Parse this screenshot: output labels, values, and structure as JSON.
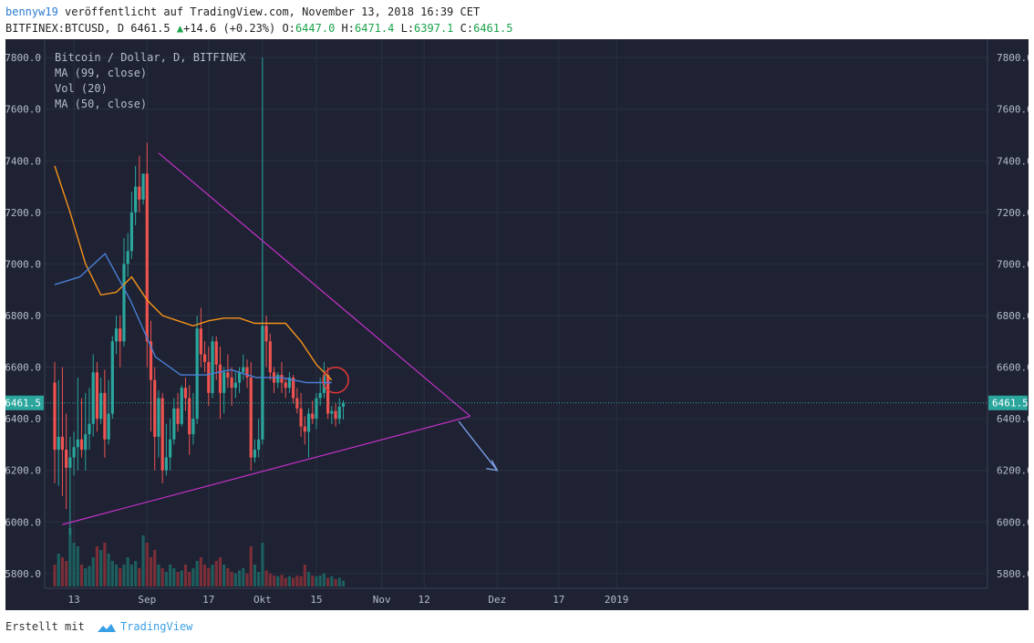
{
  "header": {
    "user": "bennyw19",
    "published": "veröffentlicht auf TradingView.com, November 13, 2018 16:39 CET",
    "symbol": "BITFINEX:BTCUSD, D",
    "last": "6461.5",
    "change": "+14.6 (+0.23%)",
    "o_label": "O:",
    "o": "6447.0",
    "h_label": "H:",
    "h": "6471.4",
    "l_label": "L:",
    "l": "6397.1",
    "c_label": "C:",
    "c": "6461.5"
  },
  "legend": {
    "title": "Bitcoin / Dollar, D, BITFINEX",
    "ma99": "MA (99, close)",
    "vol": "Vol (20)",
    "ma50": "MA (50, close)"
  },
  "footer": {
    "created": "Erstellt mit",
    "brand": "TradingView"
  },
  "colors": {
    "background": "#1e2233",
    "up": "#2aa69d",
    "down": "#ef5350",
    "ma50": "#f7931a",
    "ma99": "#4a7fd6",
    "trendline": "#c531c8",
    "arrow": "#7b9ee6",
    "circle": "#e53935",
    "grid": "#2b3142"
  },
  "chart_data": {
    "type": "candlestick",
    "title": "Bitcoin / Dollar, D, BITFINEX",
    "ylim": [
      5750,
      7850
    ],
    "y_ticks": [
      "5800.0",
      "6000.0",
      "6200.0",
      "6400.0",
      "6600.0",
      "6800.0",
      "7000.0",
      "7200.0",
      "7400.0",
      "7600.0",
      "7800.0"
    ],
    "x_ticks": [
      "13",
      "Sep",
      "17",
      "Okt",
      "15",
      "Nov",
      "12",
      "Dez",
      "17",
      "2019"
    ],
    "last_price_label": "6461.5",
    "ohlc_start_date": "2018-08-08",
    "ohlc": [
      [
        6540,
        6620,
        6150,
        6280
      ],
      [
        6280,
        6550,
        6140,
        6330
      ],
      [
        6330,
        6600,
        6100,
        6280
      ],
      [
        6280,
        6420,
        6050,
        6210
      ],
      [
        6210,
        6330,
        5950,
        6250
      ],
      [
        6250,
        6350,
        6180,
        6290
      ],
      [
        6290,
        6560,
        6200,
        6320
      ],
      [
        6320,
        6480,
        6250,
        6280
      ],
      [
        6280,
        6500,
        6200,
        6340
      ],
      [
        6340,
        6520,
        6280,
        6380
      ],
      [
        6380,
        6650,
        6330,
        6580
      ],
      [
        6580,
        6620,
        6350,
        6400
      ],
      [
        6400,
        6560,
        6380,
        6500
      ],
      [
        6500,
        6590,
        6250,
        6320
      ],
      [
        6320,
        6550,
        6300,
        6420
      ],
      [
        6420,
        6720,
        6400,
        6700
      ],
      [
        6700,
        6800,
        6650,
        6750
      ],
      [
        6750,
        6800,
        6600,
        6700
      ],
      [
        6700,
        7100,
        6680,
        7000
      ],
      [
        7000,
        7120,
        6950,
        7050
      ],
      [
        7050,
        7280,
        7020,
        7200
      ],
      [
        7200,
        7380,
        7150,
        7300
      ],
      [
        7300,
        7420,
        7200,
        7250
      ],
      [
        7250,
        7350,
        7230,
        7350
      ],
      [
        7350,
        7470,
        6600,
        6700
      ],
      [
        6700,
        6780,
        6350,
        6550
      ],
      [
        6550,
        6600,
        6200,
        6330
      ],
      [
        6330,
        6510,
        6250,
        6480
      ],
      [
        6480,
        6500,
        6150,
        6200
      ],
      [
        6200,
        6380,
        6180,
        6250
      ],
      [
        6250,
        6400,
        6200,
        6320
      ],
      [
        6320,
        6480,
        6300,
        6440
      ],
      [
        6440,
        6500,
        6350,
        6380
      ],
      [
        6380,
        6530,
        6370,
        6520
      ],
      [
        6520,
        6560,
        6430,
        6480
      ],
      [
        6480,
        6530,
        6260,
        6340
      ],
      [
        6340,
        6500,
        6300,
        6400
      ],
      [
        6400,
        6800,
        6380,
        6750
      ],
      [
        6750,
        6830,
        6600,
        6650
      ],
      [
        6650,
        6700,
        6580,
        6620
      ],
      [
        6620,
        6680,
        6450,
        6500
      ],
      [
        6500,
        6720,
        6480,
        6700
      ],
      [
        6700,
        6720,
        6550,
        6610
      ],
      [
        6610,
        6680,
        6400,
        6500
      ],
      [
        6500,
        6600,
        6420,
        6580
      ],
      [
        6580,
        6650,
        6520,
        6560
      ],
      [
        6560,
        6600,
        6450,
        6520
      ],
      [
        6520,
        6580,
        6480,
        6540
      ],
      [
        6540,
        6600,
        6500,
        6580
      ],
      [
        6580,
        6650,
        6550,
        6600
      ],
      [
        6600,
        6630,
        6520,
        6560
      ],
      [
        6560,
        6620,
        6200,
        6250
      ],
      [
        6250,
        6320,
        6230,
        6280
      ],
      [
        6280,
        6400,
        6250,
        6320
      ],
      [
        6320,
        7800,
        6300,
        6760
      ],
      [
        6760,
        6800,
        6600,
        6700
      ],
      [
        6700,
        6730,
        6550,
        6580
      ],
      [
        6580,
        6600,
        6500,
        6540
      ],
      [
        6540,
        6580,
        6520,
        6570
      ],
      [
        6570,
        6620,
        6500,
        6540
      ],
      [
        6540,
        6560,
        6480,
        6520
      ],
      [
        6520,
        6580,
        6500,
        6560
      ],
      [
        6560,
        6570,
        6460,
        6480
      ],
      [
        6480,
        6520,
        6420,
        6440
      ],
      [
        6440,
        6500,
        6330,
        6370
      ],
      [
        6370,
        6410,
        6300,
        6350
      ],
      [
        6350,
        6440,
        6250,
        6420
      ],
      [
        6420,
        6470,
        6380,
        6400
      ],
      [
        6400,
        6500,
        6360,
        6480
      ],
      [
        6480,
        6560,
        6450,
        6500
      ],
      [
        6500,
        6620,
        6480,
        6570
      ],
      [
        6570,
        6600,
        6400,
        6420
      ],
      [
        6420,
        6450,
        6380,
        6430
      ],
      [
        6430,
        6460,
        6370,
        6400
      ],
      [
        6400,
        6480,
        6380,
        6447
      ],
      [
        6447,
        6471.4,
        6397.1,
        6461.5
      ]
    ],
    "volume_ylim": [
      0,
      100
    ],
    "volume": [
      30,
      45,
      40,
      35,
      80,
      60,
      55,
      30,
      25,
      28,
      40,
      55,
      50,
      60,
      45,
      35,
      30,
      25,
      30,
      40,
      30,
      35,
      25,
      70,
      60,
      40,
      50,
      30,
      25,
      20,
      30,
      25,
      20,
      22,
      30,
      20,
      25,
      35,
      40,
      30,
      25,
      30,
      35,
      40,
      30,
      25,
      20,
      18,
      22,
      25,
      18,
      55,
      30,
      20,
      60,
      22,
      18,
      15,
      14,
      16,
      12,
      14,
      12,
      15,
      14,
      30,
      20,
      15,
      14,
      15,
      18,
      12,
      14,
      10,
      12,
      8
    ],
    "ma50": [
      7380,
      7200,
      7000,
      6880,
      6890,
      6950,
      6860,
      6800,
      6780,
      6760,
      6780,
      6790,
      6790,
      6770,
      6770,
      6770,
      6700,
      6610,
      6550
    ],
    "ma99": [
      6920,
      6950,
      7040,
      6860,
      6640,
      6570,
      6570,
      6590,
      6560,
      6560,
      6540,
      6540
    ],
    "trendlines": [
      {
        "name": "resistance",
        "from": [
          "2018-09-04",
          7430
        ],
        "to": [
          "2018-11-24",
          6410
        ]
      },
      {
        "name": "support",
        "from": [
          "2018-08-10",
          5990
        ],
        "to": [
          "2018-11-24",
          6410
        ]
      }
    ],
    "projection": {
      "from": [
        "2018-11-21",
        6390
      ],
      "to": [
        "2018-12-01",
        6200
      ]
    }
  }
}
